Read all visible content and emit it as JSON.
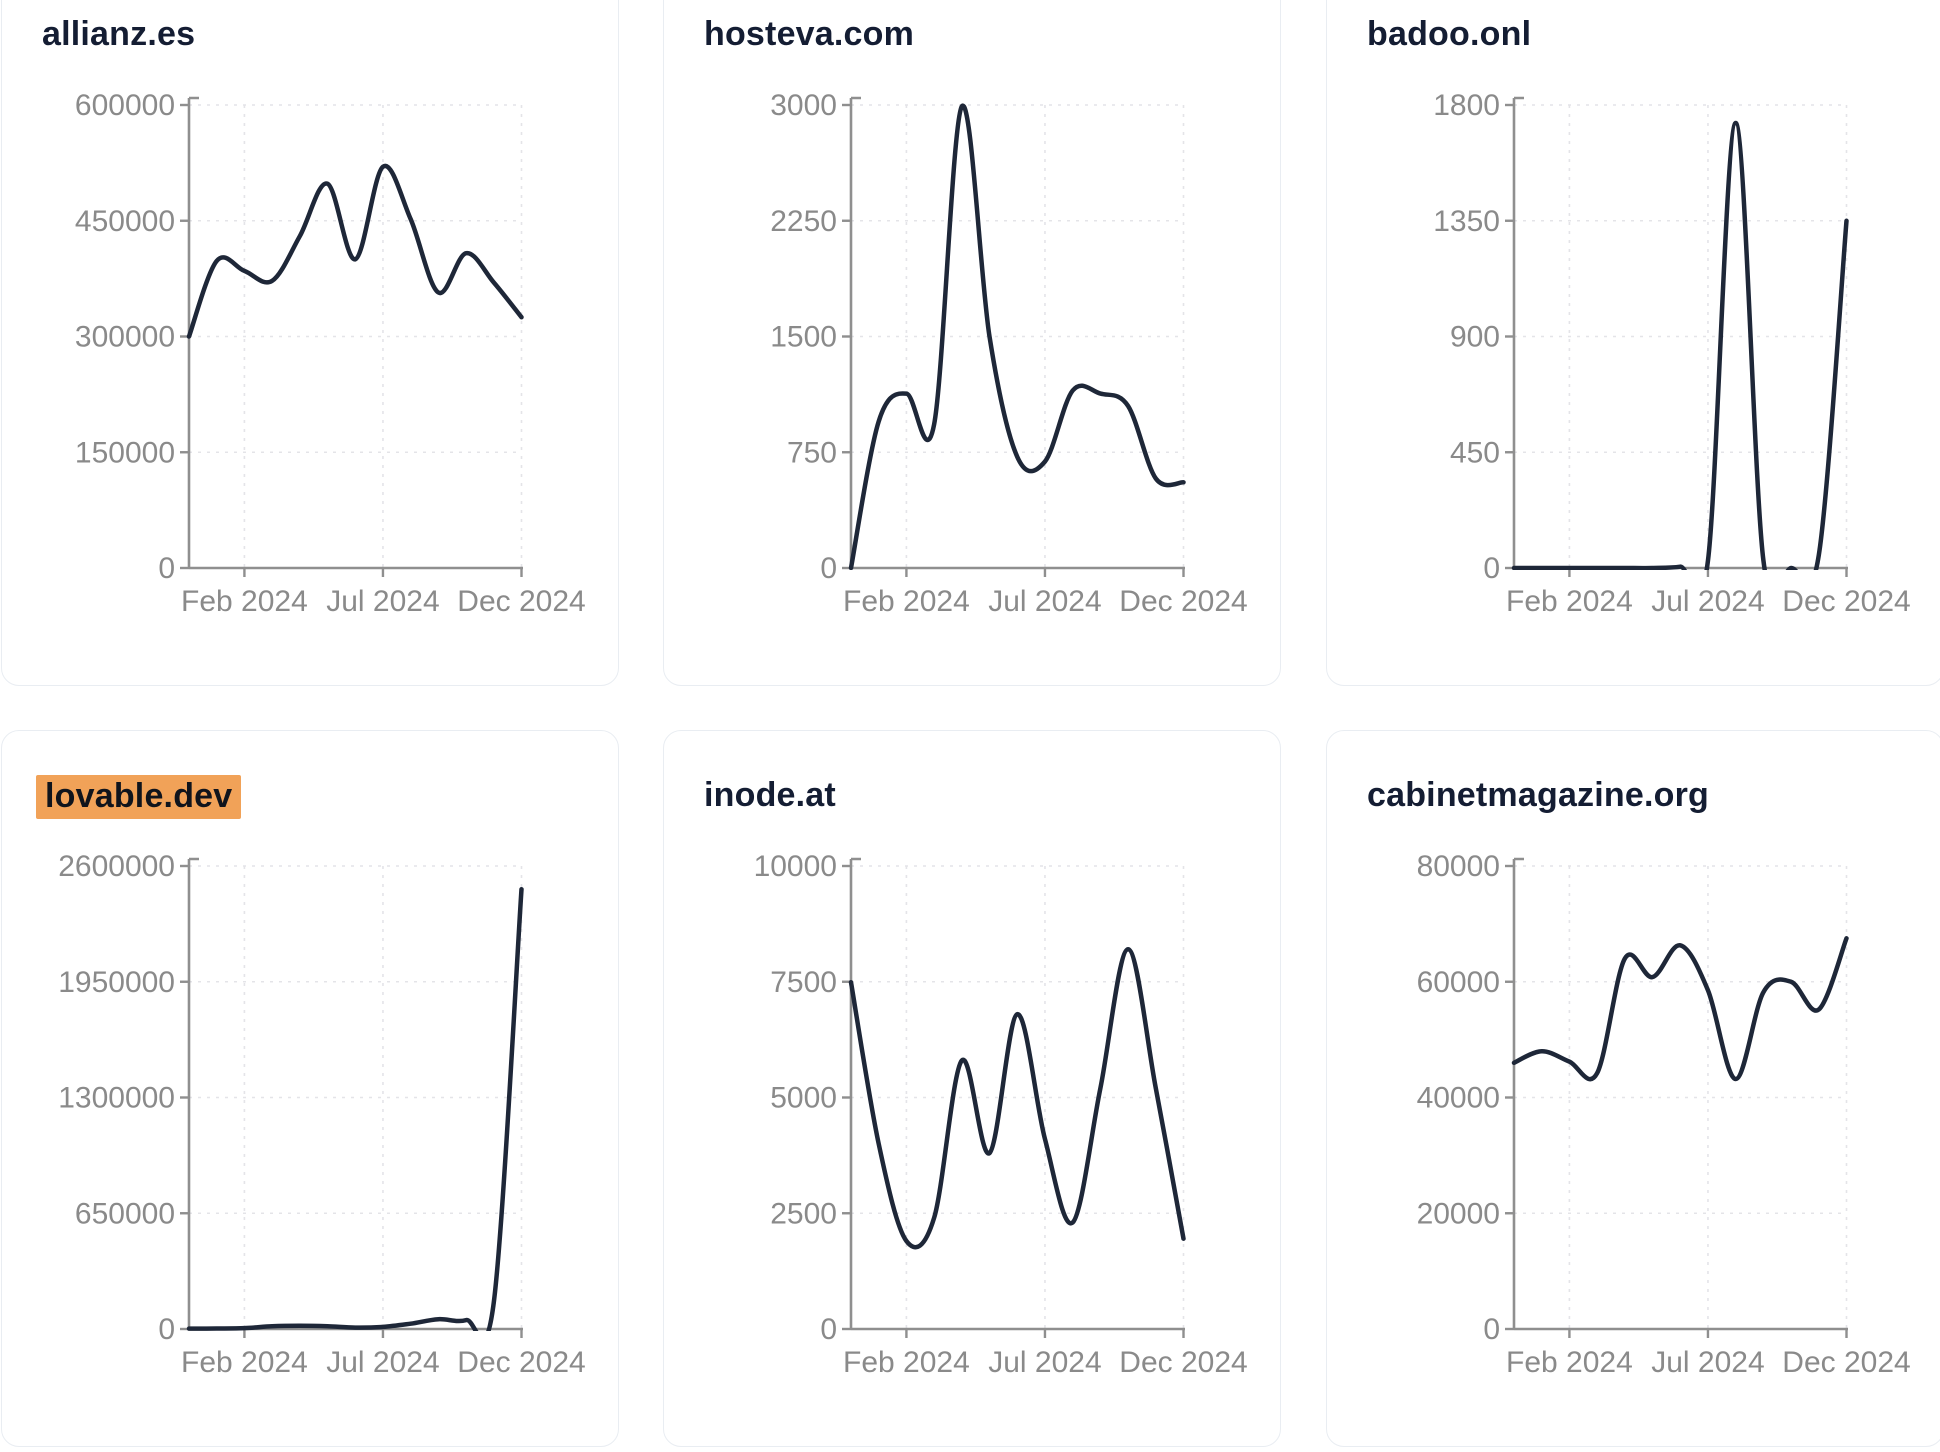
{
  "page": {
    "background": "#ffffff",
    "card_background": "#ffffff",
    "card_border_color": "#e9edf2",
    "title_color": "#141d33",
    "highlight_color": "#f1a258",
    "highlight_text_color": "#10141c",
    "line_color": "#1e2738",
    "axis_color": "#8f8f8f",
    "tick_label_color": "#8a8a8a",
    "grid_color": "#e4e4e8"
  },
  "chart_data": {
    "type": "line",
    "description": "Six small-multiple line charts of monthly values per domain, Dec 2023 through Dec 2024",
    "x": [
      "Dec 2023",
      "Jan 2024",
      "Feb 2024",
      "Mar 2024",
      "Apr 2024",
      "May 2024",
      "Jun 2024",
      "Jul 2024",
      "Aug 2024",
      "Sep 2024",
      "Oct 2024",
      "Nov 2024",
      "Dec 2024"
    ],
    "xtick_labels": [
      "Feb 2024",
      "Jul 2024",
      "Dec 2024"
    ],
    "xtick_indices": [
      2,
      7,
      12
    ],
    "grid": true,
    "legend": false,
    "charts": [
      {
        "title": "allianz.es",
        "title_highlight": false,
        "ymax": 600000,
        "yticks": [
          0,
          150000,
          300000,
          450000,
          600000
        ],
        "values": [
          300000,
          398000,
          385000,
          372000,
          430000,
          498000,
          400000,
          520000,
          452000,
          357000,
          408000,
          370000,
          325000
        ]
      },
      {
        "title": "hosteva.com",
        "title_highlight": false,
        "ymax": 3000,
        "yticks": [
          0,
          750,
          1500,
          2250,
          3000
        ],
        "values": [
          0,
          950,
          1130,
          930,
          2990,
          1500,
          720,
          690,
          1150,
          1130,
          1050,
          580,
          555
        ]
      },
      {
        "title": "badoo.onl",
        "title_highlight": false,
        "ymax": 1800,
        "yticks": [
          0,
          450,
          900,
          1350,
          1800
        ],
        "values": [
          0,
          0,
          0,
          0,
          0,
          0,
          5,
          30,
          1730,
          30,
          0,
          50,
          1350
        ]
      },
      {
        "title": "lovable.dev",
        "title_highlight": true,
        "ymax": 2600000,
        "yticks": [
          0,
          650000,
          1300000,
          1950000,
          2600000
        ],
        "values": [
          2000,
          3000,
          5000,
          15000,
          18000,
          15000,
          8000,
          12000,
          30000,
          55000,
          50000,
          150000,
          2470000
        ]
      },
      {
        "title": "inode.at",
        "title_highlight": false,
        "ymax": 10000,
        "yticks": [
          0,
          2500,
          5000,
          7500,
          10000
        ],
        "values": [
          7490,
          4000,
          1900,
          2400,
          5800,
          3800,
          6800,
          4100,
          2300,
          5200,
          8200,
          5200,
          1950
        ]
      },
      {
        "title": "cabinetmagazine.org",
        "title_highlight": false,
        "ymax": 80000,
        "yticks": [
          0,
          20000,
          40000,
          60000,
          80000
        ],
        "values": [
          46000,
          48000,
          46200,
          44200,
          64000,
          60800,
          66300,
          58500,
          43200,
          58200,
          60000,
          55200,
          67500
        ]
      }
    ]
  }
}
